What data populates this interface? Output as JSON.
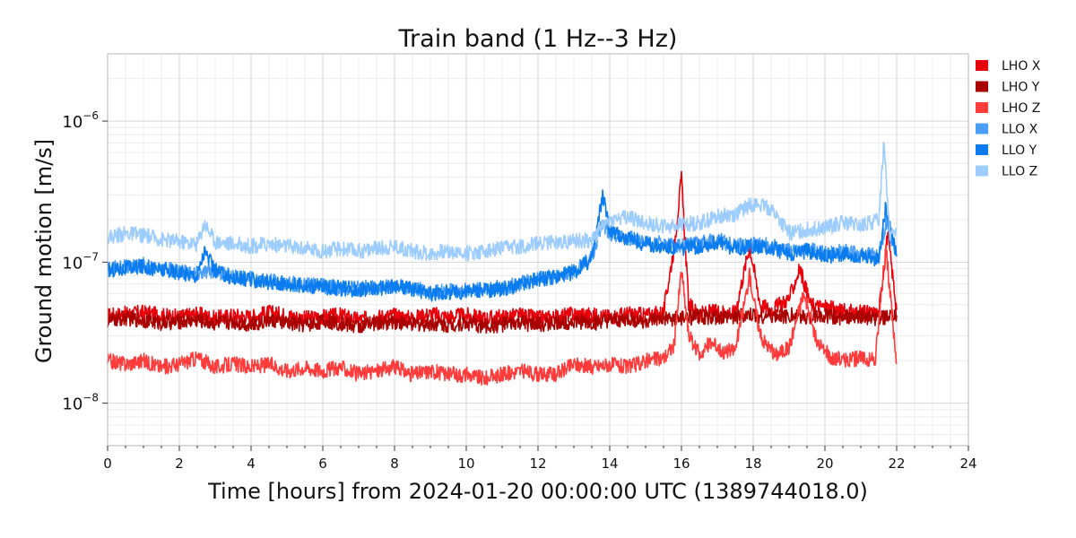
{
  "chart_data": {
    "type": "line",
    "title": "Train band (1 Hz--3 Hz)",
    "xlabel": "Time [hours] from 2024-01-20 00:00:00 UTC (1389744018.0)",
    "ylabel": "Ground motion [m/s]",
    "xlim": [
      0,
      24
    ],
    "ylim": [
      5e-09,
      3e-06
    ],
    "yscale": "log",
    "grid": true,
    "legend_placement": "outside-right",
    "x_ticks": [
      0,
      2,
      4,
      6,
      8,
      10,
      12,
      14,
      16,
      18,
      20,
      22,
      24
    ],
    "x_tick_labels": [
      "0",
      "2",
      "4",
      "6",
      "8",
      "10",
      "12",
      "14",
      "16",
      "18",
      "20",
      "22",
      "24"
    ],
    "y_ticks": [
      {
        "value": 1e-08,
        "base": "10",
        "exp": "−8"
      },
      {
        "value": 1e-07,
        "base": "10",
        "exp": "−7"
      },
      {
        "value": 1e-06,
        "base": "10",
        "exp": "−6"
      }
    ],
    "series": [
      {
        "name": "LHO X",
        "color": "#e8000b",
        "x": [
          0,
          0.5,
          1,
          1.5,
          2,
          2.5,
          3,
          3.5,
          4,
          4.5,
          5,
          5.5,
          6,
          6.5,
          7,
          7.5,
          8,
          8.5,
          9,
          9.5,
          10,
          10.5,
          11,
          11.5,
          12,
          12.5,
          13,
          13.5,
          14,
          14.5,
          15,
          15.5,
          15.8,
          16,
          16.2,
          16.5,
          17,
          17.5,
          17.9,
          18.2,
          18.5,
          19,
          19.3,
          19.6,
          20,
          20.5,
          21,
          21.5,
          21.75,
          22
        ],
        "y": [
          4.2e-08,
          4.3e-08,
          4.4e-08,
          4.2e-08,
          4.1e-08,
          4.3e-08,
          4e-08,
          4.2e-08,
          4.1e-08,
          4.4e-08,
          4.2e-08,
          4e-08,
          4.1e-08,
          4.2e-08,
          3.9e-08,
          4.1e-08,
          4.2e-08,
          4e-08,
          4.3e-08,
          4.1e-08,
          4.2e-08,
          4e-08,
          4.1e-08,
          4.2e-08,
          4e-08,
          4.1e-08,
          4.3e-08,
          4.2e-08,
          4.1e-08,
          4.3e-08,
          4.2e-08,
          4.4e-08,
          1.3e-07,
          4e-07,
          5e-08,
          4.3e-08,
          4.5e-08,
          4.4e-08,
          1.3e-07,
          5e-08,
          4.6e-08,
          5.5e-08,
          9e-08,
          5e-08,
          4.8e-08,
          4.5e-08,
          4.4e-08,
          4.3e-08,
          1.6e-07,
          4.6e-08
        ]
      },
      {
        "name": "LHO Y",
        "color": "#a90000",
        "x": [
          0,
          0.5,
          1,
          1.5,
          2,
          2.5,
          3,
          3.5,
          4,
          4.5,
          5,
          5.5,
          6,
          6.5,
          7,
          7.5,
          8,
          8.5,
          9,
          9.5,
          10,
          10.5,
          11,
          11.5,
          12,
          12.5,
          13,
          13.5,
          14,
          14.5,
          15,
          15.5,
          16,
          16.5,
          17,
          17.5,
          18,
          18.5,
          19,
          19.5,
          20,
          20.5,
          21,
          21.5,
          22
        ],
        "y": [
          3.8e-08,
          4e-08,
          3.9e-08,
          3.7e-08,
          3.8e-08,
          3.9e-08,
          3.7e-08,
          3.8e-08,
          3.6e-08,
          3.9e-08,
          3.7e-08,
          3.6e-08,
          3.8e-08,
          3.7e-08,
          3.5e-08,
          3.7e-08,
          3.8e-08,
          3.6e-08,
          3.7e-08,
          3.6e-08,
          3.7e-08,
          3.5e-08,
          3.6e-08,
          3.7e-08,
          3.6e-08,
          3.7e-08,
          3.8e-08,
          3.7e-08,
          3.8e-08,
          3.9e-08,
          3.8e-08,
          3.9e-08,
          4e-08,
          4.1e-08,
          4e-08,
          4.1e-08,
          4.2e-08,
          4.1e-08,
          4.2e-08,
          4.1e-08,
          4.2e-08,
          4e-08,
          4.1e-08,
          4e-08,
          4.2e-08
        ]
      },
      {
        "name": "LHO Z",
        "color": "#ff3b3b",
        "x": [
          0,
          0.5,
          1,
          1.5,
          2,
          2.5,
          3,
          3.5,
          4,
          4.5,
          5,
          5.5,
          6,
          6.5,
          7,
          7.5,
          8,
          8.5,
          9,
          9.5,
          10,
          10.5,
          11,
          11.5,
          12,
          12.5,
          13,
          13.5,
          14,
          14.5,
          15,
          15.5,
          15.8,
          16,
          16.2,
          16.5,
          16.8,
          17.2,
          17.5,
          17.9,
          18.2,
          18.6,
          19,
          19.4,
          19.8,
          20.2,
          20.6,
          21,
          21.4,
          21.7,
          21.9,
          22
        ],
        "y": [
          2e-08,
          1.9e-08,
          2e-08,
          1.8e-08,
          1.9e-08,
          2.1e-08,
          1.8e-08,
          1.9e-08,
          1.8e-08,
          1.9e-08,
          1.7e-08,
          1.8e-08,
          1.7e-08,
          1.8e-08,
          1.6e-08,
          1.7e-08,
          1.8e-08,
          1.6e-08,
          1.7e-08,
          1.6e-08,
          1.6e-08,
          1.5e-08,
          1.6e-08,
          1.7e-08,
          1.6e-08,
          1.6e-08,
          1.9e-08,
          1.8e-08,
          1.9e-08,
          1.8e-08,
          2e-08,
          2.1e-08,
          2.6e-08,
          9e-08,
          3e-08,
          2.2e-08,
          2.7e-08,
          2.3e-08,
          2.4e-08,
          8e-08,
          3e-08,
          2.2e-08,
          2.5e-08,
          6e-08,
          2.6e-08,
          2.1e-08,
          2e-08,
          2.1e-08,
          2e-08,
          1.3e-07,
          3.5e-08,
          1.9e-08
        ]
      },
      {
        "name": "LLO X",
        "color": "#4a9ef5",
        "x": [
          0,
          0.5,
          1,
          1.5,
          2,
          2.5,
          3,
          3.5,
          4,
          4.5,
          5,
          5.5,
          6,
          6.5,
          7,
          7.5,
          8,
          8.5,
          9,
          9.5,
          10,
          10.5,
          11,
          11.5,
          12,
          12.5,
          13,
          13.5,
          13.8,
          14,
          14.5,
          15,
          15.5,
          16,
          16.5,
          17,
          17.5,
          18,
          18.5,
          19,
          19.5,
          20,
          20.5,
          21,
          21.5,
          21.7,
          22
        ],
        "y": [
          9e-08,
          9.2e-08,
          9.5e-08,
          9e-08,
          8.7e-08,
          8.2e-08,
          8.8e-08,
          7.8e-08,
          7.6e-08,
          7.3e-08,
          7.1e-08,
          6.9e-08,
          6.8e-08,
          6.6e-08,
          6.5e-08,
          6.6e-08,
          6.8e-08,
          6.6e-08,
          6.1e-08,
          6.2e-08,
          6.3e-08,
          6.4e-08,
          6.6e-08,
          7e-08,
          7.6e-08,
          7.9e-08,
          8.6e-08,
          1.1e-07,
          1.9e-07,
          1.6e-07,
          1.5e-07,
          1.4e-07,
          1.35e-07,
          1.3e-07,
          1.35e-07,
          1.45e-07,
          1.3e-07,
          1.35e-07,
          1.3e-07,
          1.2e-07,
          1.25e-07,
          1.15e-07,
          1.2e-07,
          1.15e-07,
          1.1e-07,
          1.9e-07,
          1.15e-07
        ]
      },
      {
        "name": "LLO Y",
        "color": "#0a7cf0",
        "x": [
          0,
          0.5,
          1,
          1.5,
          2,
          2.5,
          2.7,
          3,
          3.5,
          4,
          4.5,
          5,
          5.5,
          6,
          6.5,
          7,
          7.5,
          8,
          8.5,
          9,
          9.5,
          10,
          10.5,
          11,
          11.5,
          12,
          12.5,
          13,
          13.5,
          13.8,
          14,
          14.5,
          15,
          15.5,
          16,
          16.5,
          17,
          17.5,
          18,
          18.5,
          19,
          19.5,
          20,
          20.5,
          21,
          21.5,
          21.7,
          22
        ],
        "y": [
          8.8e-08,
          9e-08,
          9.3e-08,
          8.8e-08,
          8.5e-08,
          8e-08,
          1.2e-07,
          8.6e-08,
          7.7e-08,
          7.5e-08,
          7.2e-08,
          7e-08,
          6.8e-08,
          6.7e-08,
          6.5e-08,
          6.4e-08,
          6.5e-08,
          6.7e-08,
          6.5e-08,
          6e-08,
          6.1e-08,
          6.2e-08,
          6.3e-08,
          6.5e-08,
          6.9e-08,
          7.5e-08,
          7.8e-08,
          8.5e-08,
          1.05e-07,
          3e-07,
          1.7e-07,
          1.45e-07,
          1.35e-07,
          1.3e-07,
          1.25e-07,
          1.3e-07,
          1.4e-07,
          1.25e-07,
          1.3e-07,
          1.25e-07,
          1.15e-07,
          1.2e-07,
          1.1e-07,
          1.15e-07,
          1.1e-07,
          1.05e-07,
          2.5e-07,
          1.1e-07
        ]
      },
      {
        "name": "LLO Z",
        "color": "#9dccff",
        "x": [
          0,
          0.5,
          1,
          1.5,
          2,
          2.5,
          2.7,
          3,
          3.5,
          4,
          4.5,
          5,
          5.5,
          6,
          6.5,
          7,
          7.5,
          8,
          8.5,
          9,
          9.5,
          10,
          10.5,
          11,
          11.5,
          12,
          12.5,
          13,
          13.5,
          14,
          14.5,
          15,
          15.5,
          16,
          16.5,
          17,
          17.5,
          18,
          18.5,
          19,
          19.5,
          20,
          20.5,
          21,
          21.5,
          21.65,
          21.8,
          22
        ],
        "y": [
          1.5e-07,
          1.6e-07,
          1.55e-07,
          1.45e-07,
          1.4e-07,
          1.35e-07,
          1.9e-07,
          1.4e-07,
          1.35e-07,
          1.3e-07,
          1.35e-07,
          1.3e-07,
          1.25e-07,
          1.2e-07,
          1.25e-07,
          1.2e-07,
          1.25e-07,
          1.3e-07,
          1.2e-07,
          1.15e-07,
          1.2e-07,
          1.15e-07,
          1.2e-07,
          1.25e-07,
          1.3e-07,
          1.35e-07,
          1.4e-07,
          1.4e-07,
          1.45e-07,
          2e-07,
          2.1e-07,
          1.9e-07,
          1.8e-07,
          1.85e-07,
          1.9e-07,
          2.1e-07,
          2.2e-07,
          2.6e-07,
          2.4e-07,
          1.6e-07,
          1.7e-07,
          1.75e-07,
          1.9e-07,
          1.8e-07,
          2e-07,
          7.5e-07,
          1.6e-07,
          1.7e-07
        ]
      }
    ]
  }
}
